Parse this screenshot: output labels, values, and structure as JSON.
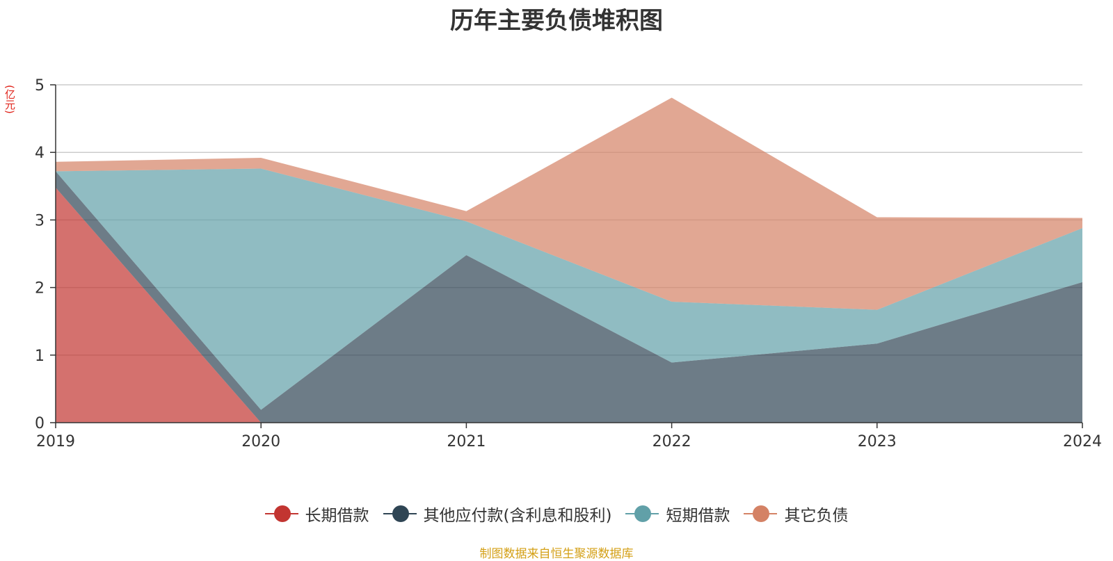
{
  "chart_data": {
    "type": "area",
    "stacked": true,
    "title": "历年主要负债堆积图",
    "unit_label": "(亿元)",
    "x": [
      "2019",
      "2020",
      "2021",
      "2022",
      "2023",
      "2024"
    ],
    "ylim": [
      0,
      5
    ],
    "yticks": [
      "0",
      "1",
      "2",
      "3",
      "4",
      "5"
    ],
    "grid": true,
    "legend_position": "bottom",
    "series": [
      {
        "name": "长期借款",
        "color": "#c23531",
        "values": [
          3.48,
          0,
          0,
          0,
          0,
          0
        ]
      },
      {
        "name": "其他应付款(含利息和股利)",
        "color": "#2f4554",
        "values": [
          0.24,
          0.19,
          2.48,
          0.89,
          1.17,
          2.08
        ]
      },
      {
        "name": "短期借款",
        "color": "#61a0a8",
        "values": [
          0,
          3.57,
          0.5,
          0.9,
          0.5,
          0.8
        ]
      },
      {
        "name": "其它负债",
        "color": "#d48265",
        "values": [
          0.14,
          0.16,
          0.15,
          3.02,
          1.37,
          0.15
        ]
      }
    ],
    "source_note": "制图数据来自恒生聚源数据库"
  }
}
